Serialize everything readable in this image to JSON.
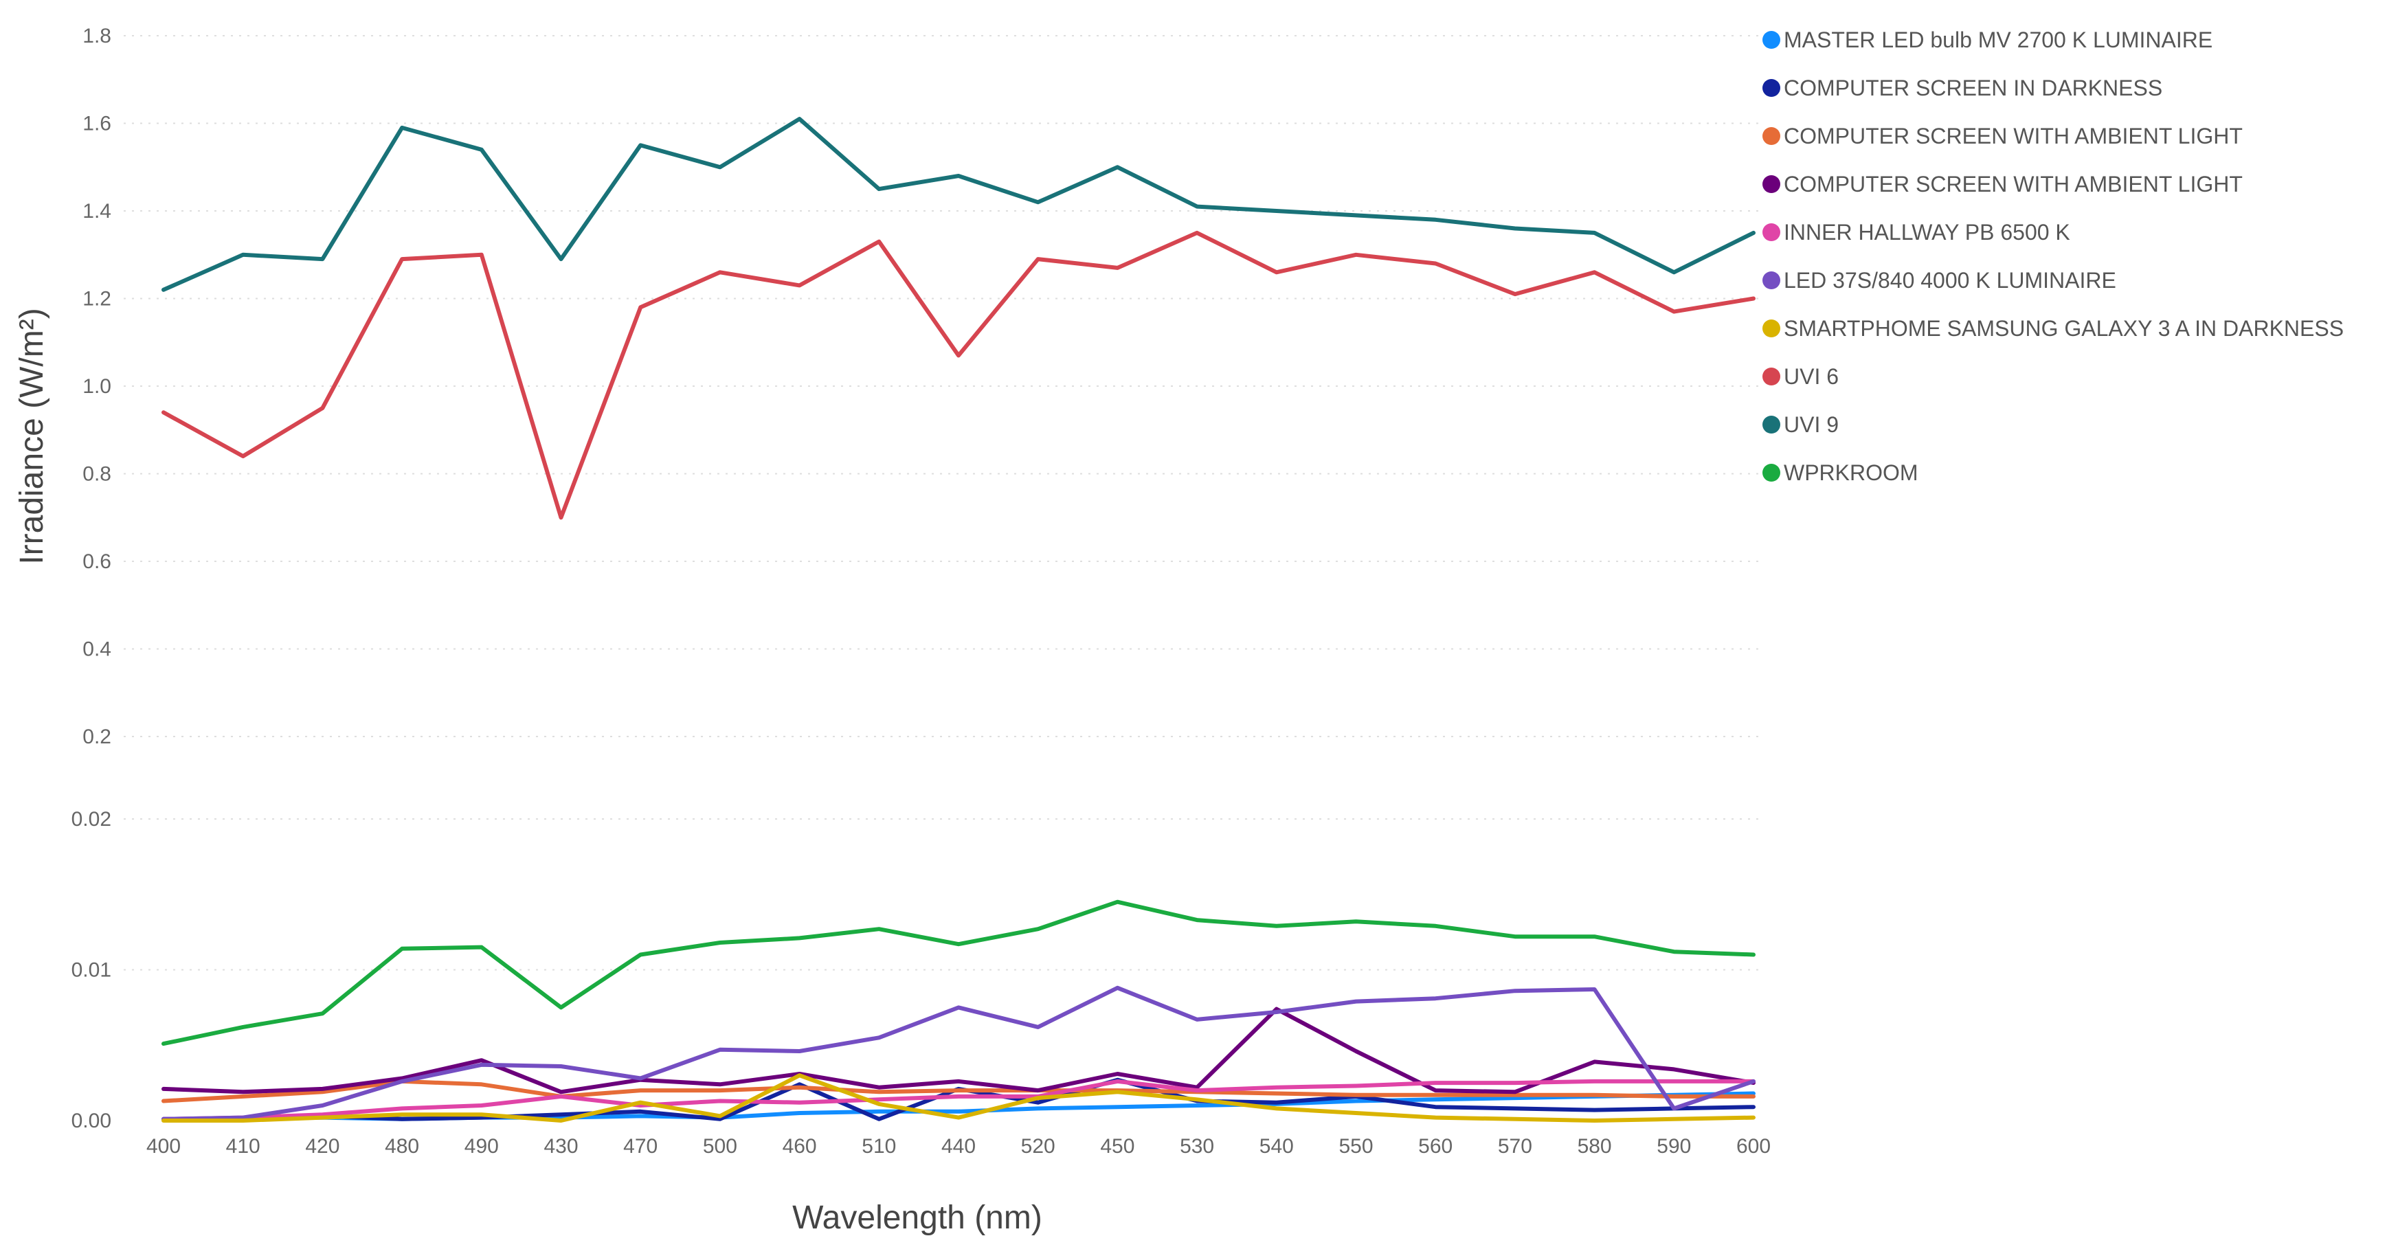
{
  "chart_data": {
    "type": "line",
    "title": "",
    "xlabel": "Wavelength (nm)",
    "ylabel": "Irradiance (W/m²)",
    "categories": [
      "400",
      "410",
      "420",
      "480",
      "490",
      "430",
      "470",
      "500",
      "460",
      "510",
      "440",
      "520",
      "450",
      "530",
      "540",
      "550",
      "560",
      "570",
      "580",
      "590",
      "600"
    ],
    "axis_segments": {
      "upper": {
        "ylim": [
          0.2,
          1.8
        ],
        "ticks": [
          "0.2",
          "0.4",
          "0.6",
          "0.8",
          "1.0",
          "1.2",
          "1.4",
          "1.6",
          "1.8"
        ]
      },
      "lower": {
        "ylim": [
          0,
          0.02
        ],
        "ticks": [
          "0.00",
          "0.01",
          "0.02"
        ]
      }
    },
    "grid": true,
    "legend_position": "right",
    "series": [
      {
        "name": "MASTER LED bulb MV  2700 K LUMINAIRE",
        "color": "#118DFF",
        "axis": "lower",
        "values": [
          0.0001,
          0.0001,
          0.0002,
          0.0001,
          0.0002,
          0.0002,
          0.0003,
          0.0002,
          0.0005,
          0.0006,
          0.0006,
          0.0008,
          0.0009,
          0.001,
          0.0011,
          0.0013,
          0.0014,
          0.0015,
          0.0016,
          0.0017,
          0.0018
        ]
      },
      {
        "name": "COMPUTER SCREEN  IN DARKNESS",
        "color": "#12239E",
        "axis": "lower",
        "values": [
          0.0001,
          0.0001,
          0.0003,
          0.0001,
          0.0002,
          0.0004,
          0.0006,
          0.0001,
          0.0024,
          0.0001,
          0.0021,
          0.0012,
          0.0027,
          0.0013,
          0.0012,
          0.0016,
          0.0009,
          0.0008,
          0.0007,
          0.0008,
          0.0009
        ]
      },
      {
        "name": "COMPUTER SCREEN WITH AMBIENT LIGHT",
        "color": "#E66C37",
        "axis": "lower",
        "values": [
          0.0013,
          0.0016,
          0.0019,
          0.0026,
          0.0024,
          0.0016,
          0.002,
          0.002,
          0.0022,
          0.0019,
          0.002,
          0.002,
          0.002,
          0.0019,
          0.0018,
          0.0017,
          0.0017,
          0.0017,
          0.0017,
          0.0016,
          0.0016
        ]
      },
      {
        "name": "COMPUTER SCREEN WITH AMBIENT LIGHT",
        "color": "#6B007B",
        "axis": "lower",
        "values": [
          0.0021,
          0.0019,
          0.0021,
          0.0028,
          0.004,
          0.0019,
          0.0027,
          0.0024,
          0.0031,
          0.0022,
          0.0026,
          0.002,
          0.0031,
          0.0022,
          0.0074,
          0.0046,
          0.002,
          0.0019,
          0.0039,
          0.0034,
          0.0025
        ]
      },
      {
        "name": "INNER HALLWAY  PB 6500 K",
        "color": "#E044A7",
        "axis": "lower",
        "values": [
          0.0001,
          0.0002,
          0.0004,
          0.0008,
          0.001,
          0.0016,
          0.001,
          0.0013,
          0.0012,
          0.0014,
          0.0016,
          0.0016,
          0.0026,
          0.002,
          0.0022,
          0.0023,
          0.0025,
          0.0025,
          0.0026,
          0.0026,
          0.0026
        ]
      },
      {
        "name": "LED 37S/840  4000 K LUMINAIRE",
        "color": "#744EC2",
        "axis": "lower",
        "values": [
          0.0001,
          0.0002,
          0.001,
          0.0026,
          0.0037,
          0.0036,
          0.0028,
          0.0047,
          0.0046,
          0.0055,
          0.0075,
          0.0062,
          0.0088,
          0.0067,
          0.0072,
          0.0079,
          0.0081,
          0.0086,
          0.0087,
          0.0008,
          0.0026
        ]
      },
      {
        "name": "SMARTPHOME SAMSUNG GALAXY  3 A IN DARKNESS",
        "color": "#D9B300",
        "axis": "lower",
        "values": [
          0.0,
          0.0,
          0.0002,
          0.0004,
          0.0004,
          0.0,
          0.0012,
          0.0003,
          0.003,
          0.0011,
          0.0002,
          0.0015,
          0.0019,
          0.0014,
          0.0008,
          0.0005,
          0.0002,
          0.0001,
          0.0,
          0.0001,
          0.0002
        ]
      },
      {
        "name": "UVI 6",
        "color": "#D64550",
        "axis": "upper",
        "values": [
          0.94,
          0.84,
          0.95,
          1.29,
          1.3,
          0.7,
          1.18,
          1.26,
          1.23,
          1.33,
          1.07,
          1.29,
          1.27,
          1.35,
          1.26,
          1.3,
          1.28,
          1.21,
          1.26,
          1.17,
          1.2
        ]
      },
      {
        "name": "UVI 9",
        "color": "#197278",
        "axis": "upper",
        "values": [
          1.22,
          1.3,
          1.29,
          1.59,
          1.54,
          1.29,
          1.55,
          1.5,
          1.61,
          1.45,
          1.48,
          1.42,
          1.5,
          1.41,
          1.4,
          1.39,
          1.38,
          1.36,
          1.35,
          1.26,
          1.35
        ]
      },
      {
        "name": "WPRKROOM",
        "color": "#1AAB40",
        "axis": "lower",
        "values": [
          0.0051,
          0.0062,
          0.0071,
          0.0114,
          0.0115,
          0.0075,
          0.011,
          0.0118,
          0.0121,
          0.0127,
          0.0117,
          0.0127,
          0.0145,
          0.0133,
          0.0129,
          0.0132,
          0.0129,
          0.0122,
          0.0122,
          0.0112,
          0.011
        ]
      }
    ]
  }
}
